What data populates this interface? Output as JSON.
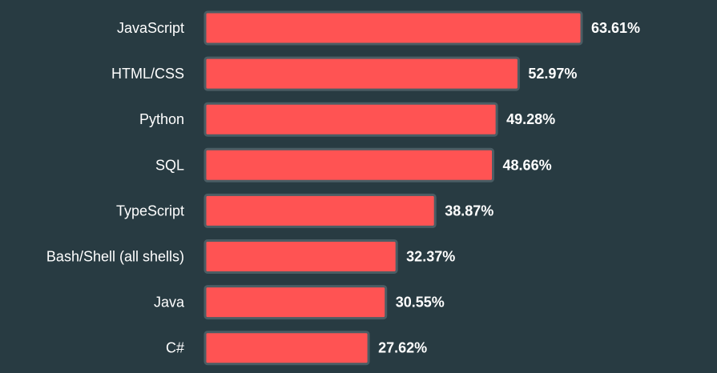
{
  "chart_data": {
    "type": "bar",
    "orientation": "horizontal",
    "title": "",
    "xlabel": "",
    "ylabel": "",
    "xlim": [
      0,
      70
    ],
    "grid": false,
    "categories": [
      "JavaScript",
      "HTML/CSS",
      "Python",
      "SQL",
      "TypeScript",
      "Bash/Shell (all shells)",
      "Java",
      "C#"
    ],
    "values": [
      63.61,
      52.97,
      49.28,
      48.66,
      38.87,
      32.37,
      30.55,
      27.62
    ],
    "value_labels": [
      "63.61%",
      "52.97%",
      "49.28%",
      "48.66%",
      "38.87%",
      "32.37%",
      "30.55%",
      "27.62%"
    ],
    "colors": {
      "background": "#283b42",
      "bar_fill": "#ff5353",
      "bar_border": "#4b5d64",
      "text": "#ffffff"
    }
  }
}
